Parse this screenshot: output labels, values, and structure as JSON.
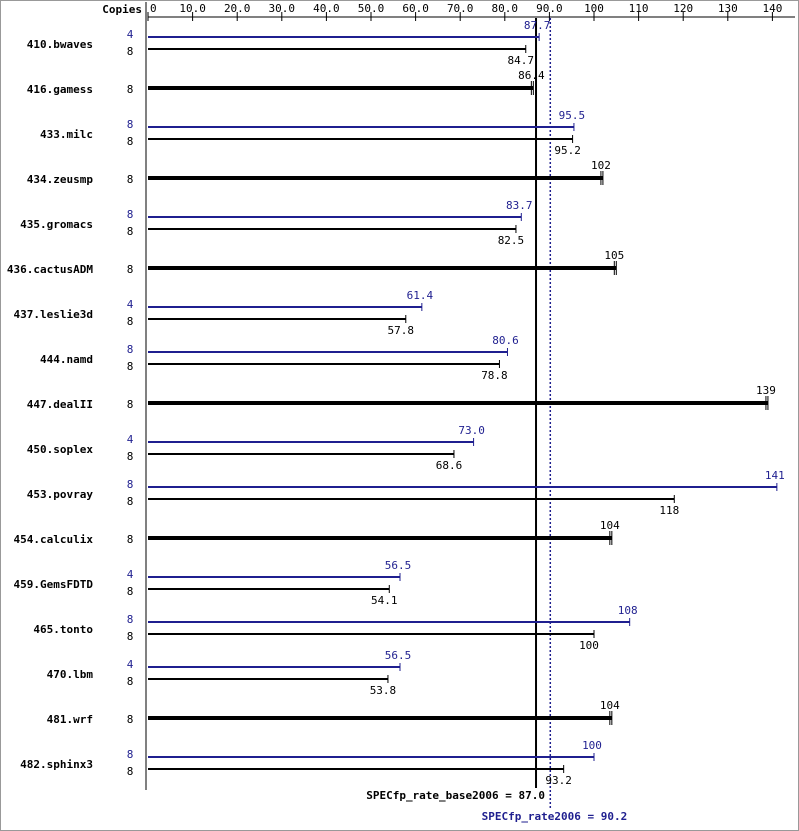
{
  "chart_data": {
    "type": "bar",
    "orientation": "horizontal",
    "copies_label": "Copies",
    "categories": [
      "410.bwaves",
      "416.gamess",
      "433.milc",
      "434.zeusmp",
      "435.gromacs",
      "436.cactusADM",
      "437.leslie3d",
      "444.namd",
      "447.dealII",
      "450.soplex",
      "453.povray",
      "454.calculix",
      "459.GemsFDTD",
      "465.tonto",
      "470.lbm",
      "481.wrf",
      "482.sphinx3"
    ],
    "series": [
      {
        "color": "#1f1f8f",
        "copies": [
          4,
          null,
          8,
          null,
          8,
          null,
          4,
          8,
          null,
          4,
          8,
          null,
          4,
          8,
          4,
          null,
          8
        ],
        "values": [
          87.7,
          null,
          95.5,
          null,
          83.7,
          null,
          61.4,
          80.6,
          null,
          73.0,
          141,
          null,
          56.5,
          108,
          56.5,
          null,
          100
        ],
        "value_labels": [
          "87.7",
          null,
          "95.5",
          null,
          "83.7",
          null,
          "61.4",
          "80.6",
          null,
          "73.0",
          "141",
          null,
          "56.5",
          "108",
          "56.5",
          null,
          "100"
        ]
      },
      {
        "color": "#000000",
        "copies": [
          8,
          8,
          8,
          8,
          8,
          8,
          8,
          8,
          8,
          8,
          8,
          8,
          8,
          8,
          8,
          8,
          8
        ],
        "values": [
          84.7,
          86.4,
          95.2,
          102,
          82.5,
          105,
          57.8,
          78.8,
          139,
          68.6,
          118,
          104,
          54.1,
          100,
          53.8,
          104,
          93.2
        ]
      }
    ],
    "xlim": [
      0,
      145
    ],
    "xticks": [
      0,
      {
        "value": 10,
        "label": "10.0"
      },
      {
        "value": 20,
        "label": "20.0"
      },
      {
        "value": 30,
        "label": "30.0"
      },
      {
        "value": 40,
        "label": "40.0"
      },
      {
        "value": 50,
        "label": "50.0"
      },
      {
        "value": 60,
        "label": "60.0"
      },
      {
        "value": 70,
        "label": "70.0"
      },
      {
        "value": 80,
        "label": "80.0"
      },
      {
        "value": 90,
        "label": "90.0"
      },
      100,
      110,
      120,
      130,
      140
    ],
    "reference_lines": [
      {
        "label": "SPECfp_rate_base2006 = 87.0",
        "value": 87.0,
        "color": "#000000",
        "style": "solid"
      },
      {
        "label": "SPECfp_rate2006 = 90.2",
        "value": 90.2,
        "color": "#1f1f8f",
        "style": "dotted"
      }
    ]
  }
}
